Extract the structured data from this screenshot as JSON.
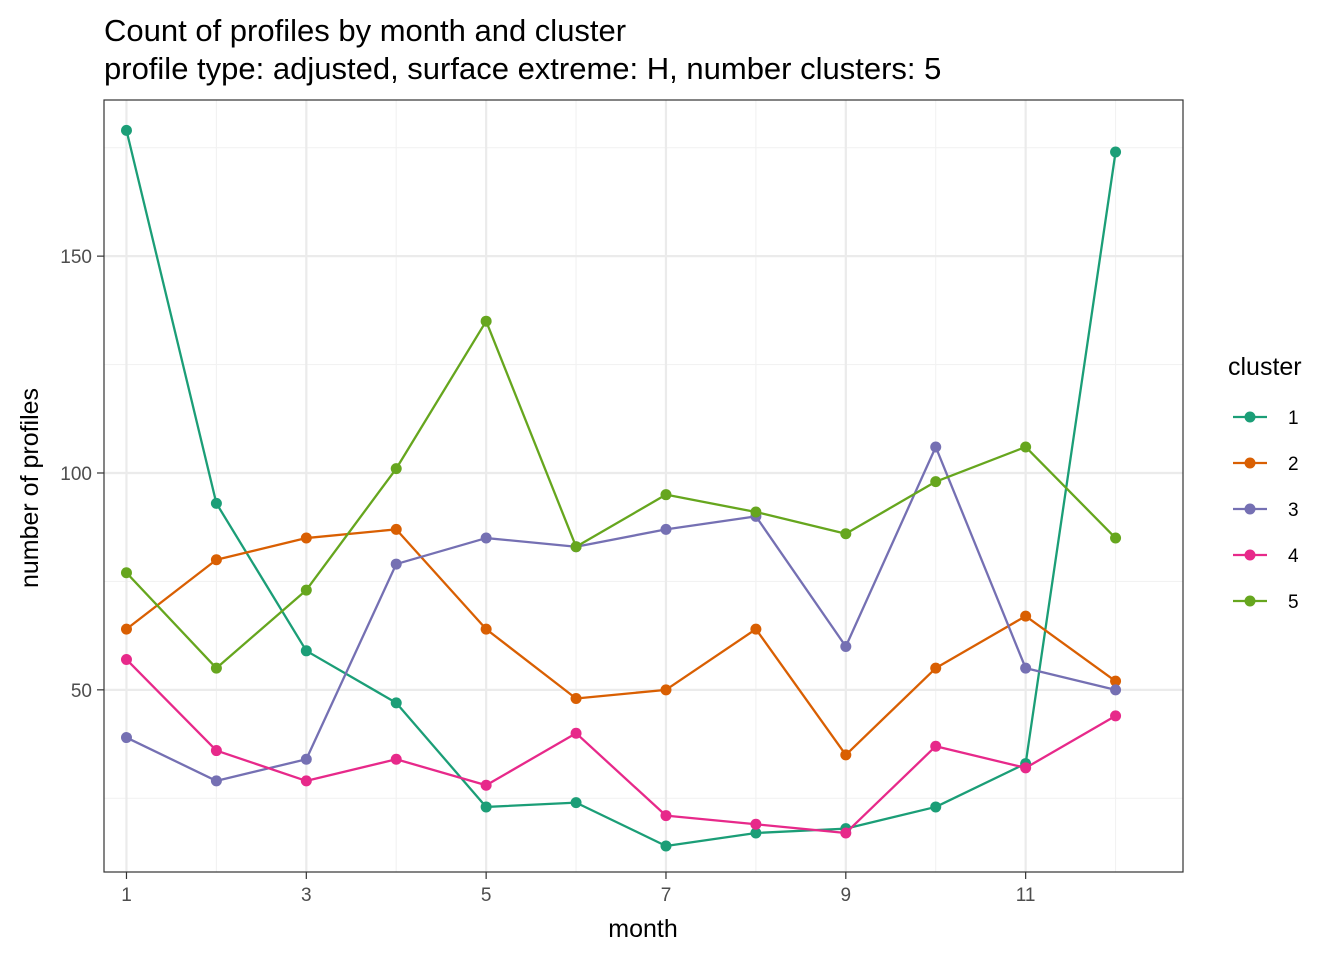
{
  "chart_data": {
    "type": "line",
    "title": "Count of profiles by month and cluster",
    "subtitle": "profile type: adjusted, surface extreme: H, number clusters: 5",
    "xlabel": "month",
    "ylabel": "number of profiles",
    "x": [
      1,
      2,
      3,
      4,
      5,
      6,
      7,
      8,
      9,
      10,
      11,
      12
    ],
    "x_ticks": [
      "1",
      "3",
      "5",
      "7",
      "9",
      "11"
    ],
    "y_ticks": [
      "50",
      "100",
      "150"
    ],
    "xlim": [
      0.75,
      12.75
    ],
    "ylim": [
      8,
      186
    ],
    "grid": true,
    "legend": {
      "title": "cluster",
      "position": "right"
    },
    "series": [
      {
        "name": "1",
        "color": "#1b9e77",
        "values": [
          179,
          93,
          59,
          47,
          23,
          24,
          14,
          17,
          18,
          23,
          33,
          174
        ]
      },
      {
        "name": "2",
        "color": "#d95f02",
        "values": [
          64,
          80,
          85,
          87,
          64,
          48,
          50,
          64,
          35,
          55,
          67,
          52
        ]
      },
      {
        "name": "3",
        "color": "#7570b3",
        "values": [
          39,
          29,
          34,
          79,
          85,
          83,
          87,
          90,
          60,
          106,
          55,
          50
        ]
      },
      {
        "name": "4",
        "color": "#e7298a",
        "values": [
          57,
          36,
          29,
          34,
          28,
          40,
          21,
          19,
          17,
          37,
          32,
          44
        ]
      },
      {
        "name": "5",
        "color": "#66a61e",
        "values": [
          77,
          55,
          73,
          101,
          135,
          83,
          95,
          91,
          86,
          98,
          106,
          85
        ]
      }
    ]
  }
}
